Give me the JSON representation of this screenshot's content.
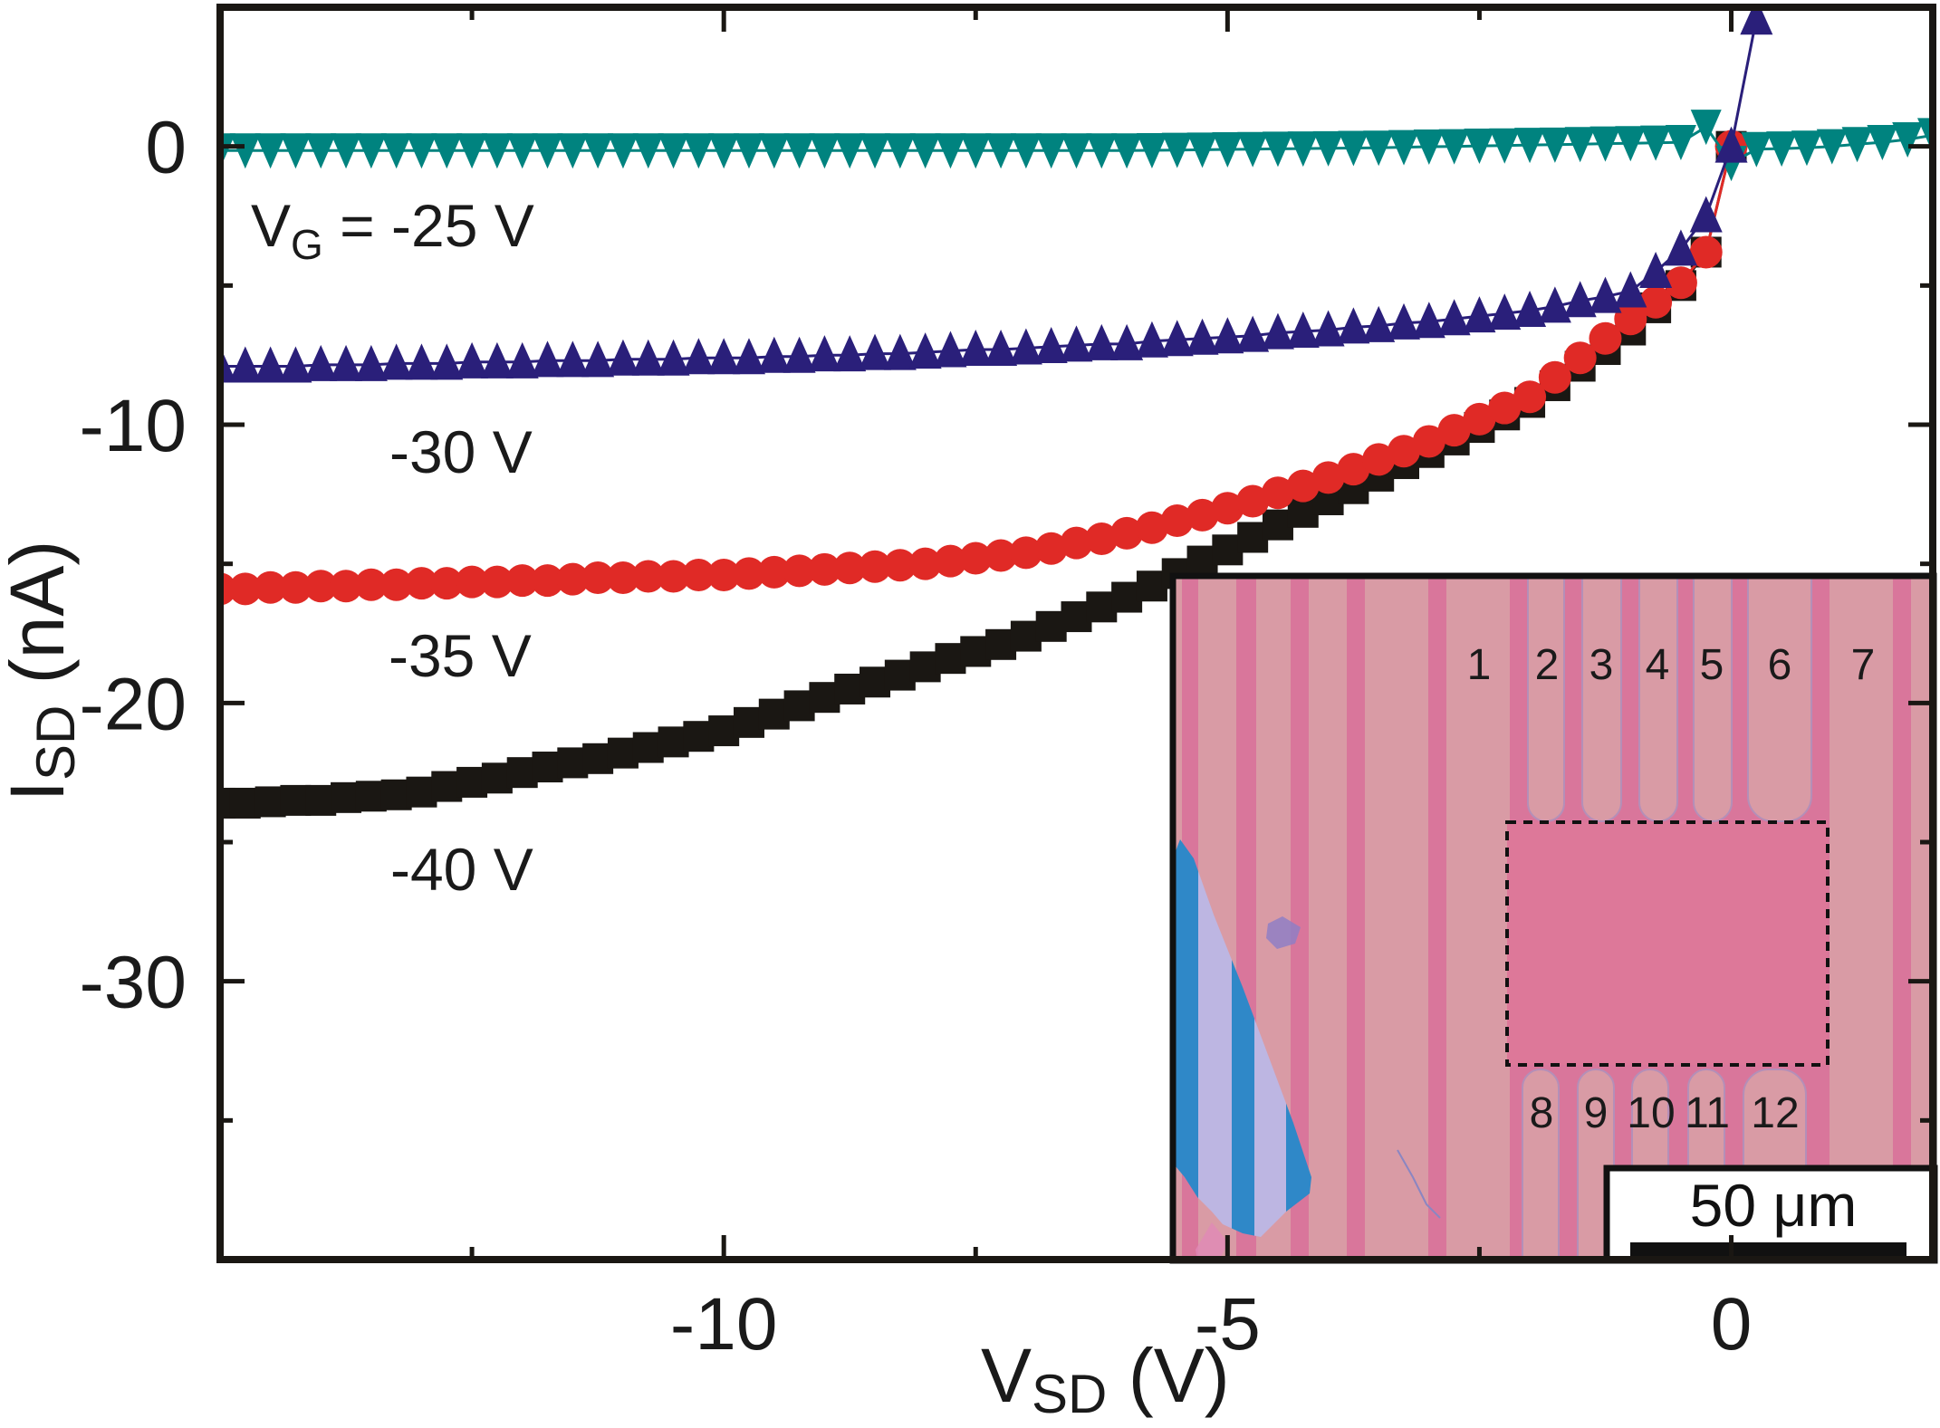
{
  "figure": {
    "y_axis_title": {
      "main": "I",
      "sub": "SD",
      "rest": " (nA)"
    },
    "x_axis_title": {
      "main": "V",
      "sub": "SD",
      "rest": " (V)"
    },
    "curve_labels": {
      "vg25": {
        "main": "V",
        "sub": "G",
        "rest": " = -25 V"
      },
      "vg30": "-30 V",
      "vg35": "-35 V",
      "vg40": "-40 V"
    },
    "colors": {
      "frame": "#1a1713",
      "inset_substrate": "#d99ba5",
      "inset_gap": "#d9769b",
      "inset_channel": "#dd7899",
      "flake_blue": "#2f88c8",
      "flake_light": "#bdb6e2"
    }
  },
  "inset": {
    "top_labels": [
      "1",
      "2",
      "3",
      "4",
      "5",
      "6",
      "7"
    ],
    "bottom_labels": [
      "8",
      "9",
      "10",
      "11",
      "12"
    ],
    "scale_bar_label": "50 μm"
  },
  "chart_data": {
    "type": "scatter",
    "title": "",
    "xlabel": "VSD (V)",
    "ylabel": "ISD (nA)",
    "xlim": [
      -15,
      2
    ],
    "ylim": [
      -40,
      5
    ],
    "x_ticks": [
      -10,
      -5,
      0
    ],
    "x_tick_labels": [
      "-10",
      "-5",
      "0"
    ],
    "x_minor_ticks": [
      -12.5,
      -7.5,
      -2.5
    ],
    "y_ticks": [
      0,
      -10,
      -20,
      -30
    ],
    "y_tick_labels": [
      "0",
      "-10",
      "-20",
      "-30"
    ],
    "y_minor_ticks": [
      -5,
      -15,
      -25,
      -35
    ],
    "grid": false,
    "legend": "none (curves labeled directly)",
    "series": [
      {
        "name": "-40 V",
        "color": "#1a1713",
        "marker": "square",
        "x": [
          -15,
          -14.75,
          -14.5,
          -14.25,
          -14,
          -13.75,
          -13.5,
          -13.25,
          -13,
          -12.75,
          -12.5,
          -12.25,
          -12,
          -11.75,
          -11.5,
          -11.25,
          -11,
          -10.75,
          -10.5,
          -10.25,
          -10,
          -9.75,
          -9.5,
          -9.25,
          -9,
          -8.75,
          -8.5,
          -8.25,
          -8,
          -7.75,
          -7.5,
          -7.25,
          -7,
          -6.75,
          -6.5,
          -6.25,
          -6,
          -5.75,
          -5.5,
          -5.25,
          -5,
          -4.75,
          -4.5,
          -4.25,
          -4,
          -3.75,
          -3.5,
          -3.25,
          -3,
          -2.75,
          -2.5,
          -2.25,
          -2,
          -1.75,
          -1.5,
          -1.25,
          -1,
          -0.75,
          -0.5,
          -0.25,
          0
        ],
        "y": [
          -23.6,
          -23.6,
          -23.55,
          -23.5,
          -23.5,
          -23.4,
          -23.35,
          -23.3,
          -23.2,
          -23.0,
          -22.85,
          -22.7,
          -22.5,
          -22.3,
          -22.15,
          -22.0,
          -21.8,
          -21.6,
          -21.4,
          -21.2,
          -21.0,
          -20.7,
          -20.4,
          -20.1,
          -19.8,
          -19.5,
          -19.25,
          -19.0,
          -18.7,
          -18.4,
          -18.15,
          -17.9,
          -17.6,
          -17.25,
          -16.9,
          -16.55,
          -16.2,
          -15.8,
          -15.35,
          -14.9,
          -14.5,
          -14.05,
          -13.6,
          -13.15,
          -12.7,
          -12.3,
          -11.85,
          -11.4,
          -11.0,
          -10.55,
          -10.1,
          -9.65,
          -9.2,
          -8.6,
          -7.9,
          -7.3,
          -6.6,
          -5.8,
          -5.0,
          -3.8,
          0
        ]
      },
      {
        "name": "-35 V",
        "color": "#e02a26",
        "marker": "circle",
        "x": [
          -15,
          -14.75,
          -14.5,
          -14.25,
          -14,
          -13.75,
          -13.5,
          -13.25,
          -13,
          -12.75,
          -12.5,
          -12.25,
          -12,
          -11.75,
          -11.5,
          -11.25,
          -11,
          -10.75,
          -10.5,
          -10.25,
          -10,
          -9.75,
          -9.5,
          -9.25,
          -9,
          -8.75,
          -8.5,
          -8.25,
          -8,
          -7.75,
          -7.5,
          -7.25,
          -7,
          -6.75,
          -6.5,
          -6.25,
          -6,
          -5.75,
          -5.5,
          -5.25,
          -5,
          -4.75,
          -4.5,
          -4.25,
          -4,
          -3.75,
          -3.5,
          -3.25,
          -3,
          -2.75,
          -2.5,
          -2.25,
          -2,
          -1.75,
          -1.5,
          -1.25,
          -1,
          -0.75,
          -0.5,
          -0.25,
          0
        ],
        "y": [
          -15.9,
          -15.9,
          -15.85,
          -15.85,
          -15.8,
          -15.8,
          -15.75,
          -15.75,
          -15.7,
          -15.7,
          -15.65,
          -15.65,
          -15.6,
          -15.6,
          -15.55,
          -15.5,
          -15.5,
          -15.45,
          -15.45,
          -15.4,
          -15.4,
          -15.35,
          -15.3,
          -15.25,
          -15.2,
          -15.15,
          -15.1,
          -15.05,
          -15.0,
          -14.9,
          -14.8,
          -14.7,
          -14.6,
          -14.45,
          -14.25,
          -14.1,
          -13.9,
          -13.7,
          -13.45,
          -13.25,
          -13.0,
          -12.75,
          -12.45,
          -12.2,
          -11.9,
          -11.6,
          -11.25,
          -10.95,
          -10.6,
          -10.2,
          -9.8,
          -9.4,
          -9.0,
          -8.3,
          -7.6,
          -6.9,
          -6.2,
          -5.6,
          -4.9,
          -3.8,
          0
        ]
      },
      {
        "name": "VG = -25 V",
        "color": "#00837f",
        "marker": "triangle-down",
        "x": [
          -15,
          -14.75,
          -14.5,
          -14.25,
          -14,
          -13.75,
          -13.5,
          -13.25,
          -13,
          -12.75,
          -12.5,
          -12.25,
          -12,
          -11.75,
          -11.5,
          -11.25,
          -11,
          -10.75,
          -10.5,
          -10.25,
          -10,
          -9.75,
          -9.5,
          -9.25,
          -9,
          -8.75,
          -8.5,
          -8.25,
          -8,
          -7.75,
          -7.5,
          -7.25,
          -7,
          -6.75,
          -6.5,
          -6.25,
          -6,
          -5.75,
          -5.5,
          -5.25,
          -5,
          -4.75,
          -4.5,
          -4.25,
          -4,
          -3.75,
          -3.5,
          -3.25,
          -3,
          -2.75,
          -2.5,
          -2.25,
          -2,
          -1.75,
          -1.5,
          -1.25,
          -1,
          -0.75,
          -0.5,
          -0.25,
          0,
          0.25,
          0.5,
          0.75,
          1,
          1.25,
          1.5,
          1.75,
          2
        ],
        "y": [
          -0.15,
          -0.15,
          -0.15,
          -0.15,
          -0.15,
          -0.15,
          -0.15,
          -0.15,
          -0.15,
          -0.15,
          -0.15,
          -0.15,
          -0.15,
          -0.15,
          -0.15,
          -0.15,
          -0.15,
          -0.15,
          -0.15,
          -0.15,
          -0.15,
          -0.15,
          -0.15,
          -0.15,
          -0.15,
          -0.15,
          -0.15,
          -0.15,
          -0.15,
          -0.15,
          -0.15,
          -0.15,
          -0.15,
          -0.15,
          -0.15,
          -0.15,
          -0.15,
          -0.14,
          -0.13,
          -0.12,
          -0.11,
          -0.1,
          -0.09,
          -0.08,
          -0.07,
          -0.06,
          -0.05,
          -0.03,
          -0.01,
          0.0,
          0.02,
          0.03,
          0.05,
          0.06,
          0.08,
          0.1,
          0.11,
          0.13,
          0.15,
          0.7,
          -0.6,
          -0.1,
          -0.08,
          -0.05,
          0.0,
          0.08,
          0.15,
          0.25,
          0.4
        ]
      },
      {
        "name": "-30 V",
        "color": "#2a1f7a",
        "marker": "triangle-up",
        "x": [
          -15,
          -14.75,
          -14.5,
          -14.25,
          -14,
          -13.75,
          -13.5,
          -13.25,
          -13,
          -12.75,
          -12.5,
          -12.25,
          -12,
          -11.75,
          -11.5,
          -11.25,
          -11,
          -10.75,
          -10.5,
          -10.25,
          -10,
          -9.75,
          -9.5,
          -9.25,
          -9,
          -8.75,
          -8.5,
          -8.25,
          -8,
          -7.75,
          -7.5,
          -7.25,
          -7,
          -6.75,
          -6.5,
          -6.25,
          -6,
          -5.75,
          -5.5,
          -5.25,
          -5,
          -4.75,
          -4.5,
          -4.25,
          -4,
          -3.75,
          -3.5,
          -3.25,
          -3,
          -2.75,
          -2.5,
          -2.25,
          -2,
          -1.75,
          -1.5,
          -1.25,
          -1,
          -0.75,
          -0.5,
          -0.25,
          0,
          0.25
        ],
        "y": [
          -7.9,
          -7.9,
          -7.9,
          -7.9,
          -7.85,
          -7.85,
          -7.85,
          -7.8,
          -7.8,
          -7.8,
          -7.75,
          -7.75,
          -7.75,
          -7.7,
          -7.7,
          -7.7,
          -7.65,
          -7.65,
          -7.65,
          -7.6,
          -7.6,
          -7.6,
          -7.55,
          -7.55,
          -7.5,
          -7.5,
          -7.45,
          -7.45,
          -7.4,
          -7.35,
          -7.3,
          -7.3,
          -7.25,
          -7.2,
          -7.15,
          -7.1,
          -7.1,
          -7.0,
          -6.95,
          -6.9,
          -6.85,
          -6.8,
          -6.7,
          -6.65,
          -6.6,
          -6.5,
          -6.45,
          -6.35,
          -6.3,
          -6.2,
          -6.1,
          -6.0,
          -5.9,
          -5.75,
          -5.55,
          -5.4,
          -5.2,
          -4.5,
          -3.7,
          -2.5,
          0,
          4.6
        ]
      }
    ]
  }
}
